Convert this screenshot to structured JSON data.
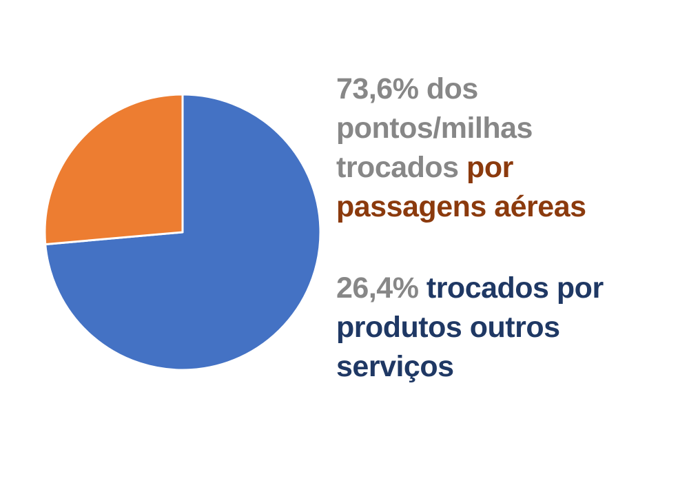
{
  "colors": {
    "background": "#FFFFFF",
    "gray": "#878787",
    "rust": "#8B3A0D",
    "navy": "#1F3864",
    "pie_blue": "#4472C4",
    "pie_orange": "#ED7D31",
    "separator": "#FFFFFF"
  },
  "chart_data": {
    "type": "pie",
    "title": "",
    "start_angle_deg": 0,
    "direction": "clockwise",
    "legend": "none",
    "slice_border_width": 3,
    "slice_border_color_key": "separator",
    "slices": [
      {
        "label": "pontos/milhas trocados por passagens aéreas",
        "value": 73.6,
        "color_key": "pie_blue"
      },
      {
        "label": "trocados por produtos outros serviços",
        "value": 26.4,
        "color_key": "pie_orange"
      }
    ]
  },
  "annotations": {
    "block_airline": {
      "full_text": "73,6% dos pontos/milhas trocados por passagens aéreas",
      "lines": [
        [
          {
            "text": "73,6% dos",
            "color": "gray"
          }
        ],
        [
          {
            "text": "pontos/milhas",
            "color": "gray"
          }
        ],
        [
          {
            "text": "trocados ",
            "color": "gray"
          },
          {
            "text": "por",
            "color": "rust"
          }
        ],
        [
          {
            "text": "passagens aéreas",
            "color": "rust"
          }
        ]
      ]
    },
    "block_products": {
      "full_text": "26,4% trocados por produtos outros serviços",
      "lines": [
        [
          {
            "text": "26,4% ",
            "color": "gray"
          },
          {
            "text": "trocados por",
            "color": "navy"
          }
        ],
        [
          {
            "text": "produtos outros",
            "color": "navy"
          }
        ],
        [
          {
            "text": "serviços",
            "color": "navy"
          }
        ]
      ]
    }
  }
}
